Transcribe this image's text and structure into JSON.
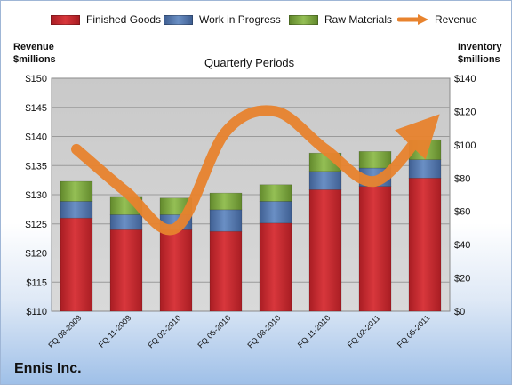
{
  "chart_data": {
    "type": "bar",
    "stacked": true,
    "title": "Quarterly Periods",
    "ylabel_left": "Revenue\n$millions",
    "ylabel_right": "Inventory\n$millions",
    "company": "Ennis Inc.",
    "categories": [
      "FQ 08-2009",
      "FQ 11-2009",
      "FQ 02-2010",
      "FQ 05-2010",
      "FQ 08-2010",
      "FQ 11-2010",
      "FQ 02-2011",
      "FQ 05-2011"
    ],
    "left_ticks": [
      "$110",
      "$115",
      "$120",
      "$125",
      "$130",
      "$135",
      "$140",
      "$145",
      "$150"
    ],
    "right_ticks": [
      "$0",
      "$20",
      "$40",
      "$60",
      "$80",
      "$100",
      "$120",
      "$140"
    ],
    "ylim_left": [
      110,
      150
    ],
    "ylim_right": [
      0,
      140
    ],
    "grid": true,
    "legend_position": "top",
    "series": [
      {
        "name": "Finished Goods",
        "axis": "right",
        "color": "#c0272d",
        "values": [
          56,
          49,
          49,
          48,
          53,
          73,
          75,
          80
        ]
      },
      {
        "name": "Work in Progress",
        "axis": "right",
        "color": "#4a6fa5",
        "values": [
          10,
          9,
          9,
          13,
          13,
          11,
          11,
          11
        ]
      },
      {
        "name": "Raw Materials",
        "axis": "right",
        "color": "#7aa33c",
        "values": [
          12,
          11,
          10,
          10,
          10,
          11,
          10,
          12
        ]
      },
      {
        "name": "Revenue",
        "axis": "left",
        "type": "line",
        "color": "#e8832e",
        "values": [
          137.8,
          130.5,
          124.3,
          140.8,
          144.3,
          137.8,
          132.3,
          141.2
        ]
      }
    ]
  }
}
